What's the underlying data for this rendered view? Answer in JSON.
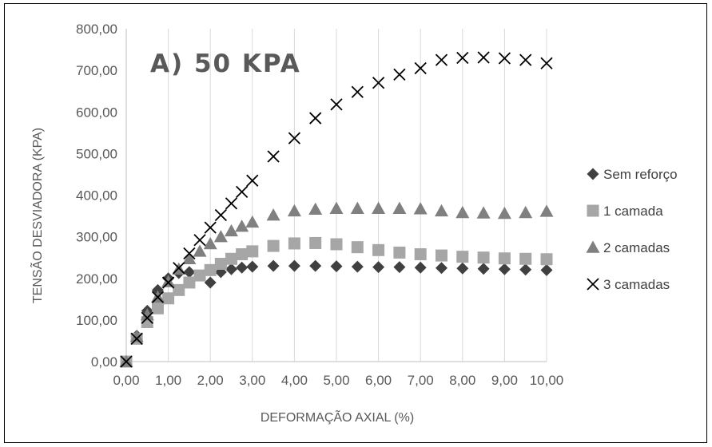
{
  "chart_data": {
    "type": "scatter",
    "title": "A) 50 KPA",
    "xlabel": "DEFORMAÇÃO AXIAL (%)",
    "ylabel": "TENSÃO DESVIADORA (KPA)",
    "xlim": [
      0,
      10
    ],
    "ylim": [
      0,
      800
    ],
    "xticks": [
      "0,00",
      "1,00",
      "2,00",
      "3,00",
      "4,00",
      "5,00",
      "6,00",
      "7,00",
      "8,00",
      "9,00",
      "10,00"
    ],
    "yticks": [
      "0,00",
      "100,00",
      "200,00",
      "300,00",
      "400,00",
      "500,00",
      "600,00",
      "700,00",
      "800,00"
    ],
    "grid": "vertical",
    "legend_position": "right",
    "series": [
      {
        "name": "Sem reforço",
        "marker": "diamond",
        "color": "#404040",
        "points": [
          [
            0,
            0
          ],
          [
            0.25,
            62
          ],
          [
            0.5,
            122
          ],
          [
            0.75,
            172
          ],
          [
            1,
            200
          ],
          [
            1.25,
            213
          ],
          [
            1.5,
            215
          ],
          [
            2,
            190
          ],
          [
            2.25,
            215
          ],
          [
            2.5,
            222
          ],
          [
            2.75,
            226
          ],
          [
            3,
            228
          ],
          [
            3.5,
            230
          ],
          [
            4,
            230
          ],
          [
            4.5,
            230
          ],
          [
            5,
            229
          ],
          [
            5.5,
            228
          ],
          [
            6,
            227
          ],
          [
            6.5,
            227
          ],
          [
            7,
            226
          ],
          [
            7.5,
            225
          ],
          [
            8,
            224
          ],
          [
            8.5,
            223
          ],
          [
            9,
            222
          ],
          [
            9.5,
            221
          ],
          [
            10,
            220
          ]
        ]
      },
      {
        "name": "1 camada",
        "marker": "square",
        "color": "#a6a6a6",
        "points": [
          [
            0,
            0
          ],
          [
            0.25,
            55
          ],
          [
            0.5,
            95
          ],
          [
            0.75,
            128
          ],
          [
            1,
            152
          ],
          [
            1.25,
            172
          ],
          [
            1.5,
            190
          ],
          [
            1.75,
            207
          ],
          [
            2,
            220
          ],
          [
            2.25,
            235
          ],
          [
            2.5,
            247
          ],
          [
            2.75,
            258
          ],
          [
            3,
            265
          ],
          [
            3.5,
            278
          ],
          [
            4,
            284
          ],
          [
            4.5,
            285
          ],
          [
            5,
            282
          ],
          [
            5.5,
            275
          ],
          [
            6,
            268
          ],
          [
            6.5,
            262
          ],
          [
            7,
            258
          ],
          [
            7.5,
            255
          ],
          [
            8,
            252
          ],
          [
            8.5,
            250
          ],
          [
            9,
            248
          ],
          [
            9.5,
            247
          ],
          [
            10,
            246
          ]
        ]
      },
      {
        "name": "2 camadas",
        "marker": "triangle",
        "color": "#808080",
        "points": [
          [
            0,
            0
          ],
          [
            0.25,
            60
          ],
          [
            0.5,
            112
          ],
          [
            0.75,
            155
          ],
          [
            1,
            192
          ],
          [
            1.25,
            222
          ],
          [
            1.5,
            247
          ],
          [
            1.75,
            265
          ],
          [
            2,
            283
          ],
          [
            2.25,
            300
          ],
          [
            2.5,
            314
          ],
          [
            2.75,
            325
          ],
          [
            3,
            335
          ],
          [
            3.5,
            352
          ],
          [
            4,
            362
          ],
          [
            4.5,
            366
          ],
          [
            5,
            368
          ],
          [
            5.5,
            368
          ],
          [
            6,
            368
          ],
          [
            6.5,
            368
          ],
          [
            7,
            367
          ],
          [
            7.5,
            362
          ],
          [
            8,
            358
          ],
          [
            8.5,
            357
          ],
          [
            9,
            356
          ],
          [
            9.5,
            358
          ],
          [
            10,
            361
          ]
        ]
      },
      {
        "name": "3 camadas",
        "marker": "x",
        "color": "#000000",
        "points": [
          [
            0,
            0
          ],
          [
            0.25,
            55
          ],
          [
            0.5,
            105
          ],
          [
            0.75,
            155
          ],
          [
            1,
            190
          ],
          [
            1.25,
            225
          ],
          [
            1.5,
            260
          ],
          [
            1.75,
            292
          ],
          [
            2,
            322
          ],
          [
            2.25,
            352
          ],
          [
            2.5,
            380
          ],
          [
            2.75,
            408
          ],
          [
            3,
            435
          ],
          [
            3.5,
            493
          ],
          [
            4,
            537
          ],
          [
            4.5,
            585
          ],
          [
            5,
            618
          ],
          [
            5.5,
            648
          ],
          [
            6,
            670
          ],
          [
            6.5,
            690
          ],
          [
            7,
            705
          ],
          [
            7.5,
            725
          ],
          [
            8,
            730
          ],
          [
            8.5,
            731
          ],
          [
            9,
            729
          ],
          [
            9.5,
            725
          ],
          [
            10,
            717
          ]
        ]
      }
    ]
  }
}
